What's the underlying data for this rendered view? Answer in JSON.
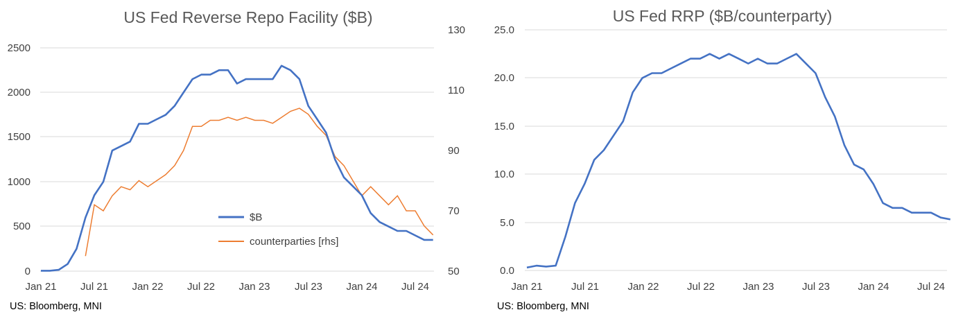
{
  "charts": [
    {
      "title": "US Fed Reverse Repo Facility ($B)",
      "source": "US: Bloomberg, MNI",
      "x_tick_labels": [
        "Jan 21",
        "Jul 21",
        "Jan 22",
        "Jul 22",
        "Jan 23",
        "Jul 23",
        "Jan 24",
        "Jul 24"
      ],
      "y_left_tick_labels": [
        "0",
        "500",
        "1000",
        "1500",
        "2000",
        "2500"
      ],
      "y_right_tick_labels": [
        "50",
        "70",
        "90",
        "110",
        "130"
      ],
      "legend": [
        "$B",
        "counterparties [rhs]"
      ]
    },
    {
      "title": "US Fed RRP ($B/counterparty)",
      "source": "US: Bloomberg, MNI",
      "x_tick_labels": [
        "Jan 21",
        "Jul 21",
        "Jan 22",
        "Jul 22",
        "Jan 23",
        "Jul 23",
        "Jan 24",
        "Jul 24"
      ],
      "y_tick_labels": [
        "0.0",
        "5.0",
        "10.0",
        "15.0",
        "20.0",
        "25.0"
      ]
    }
  ],
  "colors": {
    "usd": "#4472C4",
    "counterparties": "#ED7D31",
    "grid": "#D9D9D9"
  },
  "chart_data": [
    {
      "type": "line",
      "title": "US Fed Reverse Repo Facility ($B)",
      "x_axis": "date",
      "x_ticks": [
        "2021-01",
        "2021-07",
        "2022-01",
        "2022-07",
        "2023-01",
        "2023-07",
        "2024-01",
        "2024-07"
      ],
      "ylim_left": [
        0,
        2500
      ],
      "ylim_right": [
        50,
        130
      ],
      "grid": true,
      "legend_position": "center-bottom",
      "series": [
        {
          "name": "$B",
          "axis": "left",
          "x": [
            "2021-01",
            "2021-02",
            "2021-03",
            "2021-04",
            "2021-05",
            "2021-06",
            "2021-07",
            "2021-08",
            "2021-09",
            "2021-10",
            "2021-11",
            "2021-12",
            "2022-01",
            "2022-02",
            "2022-03",
            "2022-04",
            "2022-05",
            "2022-06",
            "2022-07",
            "2022-08",
            "2022-09",
            "2022-10",
            "2022-11",
            "2022-12",
            "2023-01",
            "2023-02",
            "2023-03",
            "2023-04",
            "2023-05",
            "2023-06",
            "2023-07",
            "2023-08",
            "2023-09",
            "2023-10",
            "2023-11",
            "2023-12",
            "2024-01",
            "2024-02",
            "2024-03",
            "2024-04",
            "2024-05",
            "2024-06",
            "2024-07",
            "2024-08",
            "2024-09"
          ],
          "values": [
            5,
            5,
            15,
            80,
            250,
            600,
            850,
            1000,
            1350,
            1400,
            1450,
            1650,
            1650,
            1700,
            1750,
            1850,
            2000,
            2150,
            2200,
            2200,
            2250,
            2250,
            2100,
            2150,
            2150,
            2150,
            2150,
            2300,
            2250,
            2150,
            1850,
            1700,
            1550,
            1250,
            1050,
            950,
            850,
            650,
            550,
            500,
            450,
            450,
            400,
            350,
            350
          ]
        },
        {
          "name": "counterparties [rhs]",
          "axis": "right",
          "x": [
            "2021-06",
            "2021-07",
            "2021-08",
            "2021-09",
            "2021-10",
            "2021-11",
            "2021-12",
            "2022-01",
            "2022-02",
            "2022-03",
            "2022-04",
            "2022-05",
            "2022-06",
            "2022-07",
            "2022-08",
            "2022-09",
            "2022-10",
            "2022-11",
            "2022-12",
            "2023-01",
            "2023-02",
            "2023-03",
            "2023-04",
            "2023-05",
            "2023-06",
            "2023-07",
            "2023-08",
            "2023-09",
            "2023-10",
            "2023-11",
            "2023-12",
            "2024-01",
            "2024-02",
            "2024-03",
            "2024-04",
            "2024-05",
            "2024-06",
            "2024-07",
            "2024-08",
            "2024-09"
          ],
          "values": [
            55,
            72,
            70,
            75,
            78,
            77,
            80,
            78,
            80,
            82,
            85,
            90,
            98,
            98,
            100,
            100,
            101,
            100,
            101,
            100,
            100,
            99,
            101,
            103,
            104,
            102,
            98,
            95,
            88,
            85,
            80,
            75,
            78,
            75,
            72,
            75,
            70,
            70,
            65,
            62
          ]
        }
      ]
    },
    {
      "type": "line",
      "title": "US Fed RRP ($B/counterparty)",
      "x_axis": "date",
      "x_ticks": [
        "2021-01",
        "2021-07",
        "2022-01",
        "2022-07",
        "2023-01",
        "2023-07",
        "2024-01",
        "2024-07"
      ],
      "ylim": [
        0,
        25
      ],
      "grid": true,
      "series": [
        {
          "x": [
            "2021-01",
            "2021-02",
            "2021-03",
            "2021-04",
            "2021-05",
            "2021-06",
            "2021-07",
            "2021-08",
            "2021-09",
            "2021-10",
            "2021-11",
            "2021-12",
            "2022-01",
            "2022-02",
            "2022-03",
            "2022-04",
            "2022-05",
            "2022-06",
            "2022-07",
            "2022-08",
            "2022-09",
            "2022-10",
            "2022-11",
            "2022-12",
            "2023-01",
            "2023-02",
            "2023-03",
            "2023-04",
            "2023-05",
            "2023-06",
            "2023-07",
            "2023-08",
            "2023-09",
            "2023-10",
            "2023-11",
            "2023-12",
            "2024-01",
            "2024-02",
            "2024-03",
            "2024-04",
            "2024-05",
            "2024-06",
            "2024-07",
            "2024-08",
            "2024-09"
          ],
          "values": [
            0.3,
            0.5,
            0.4,
            0.5,
            3.5,
            7.0,
            9.0,
            11.5,
            12.5,
            14.0,
            15.5,
            18.5,
            20.0,
            20.5,
            20.5,
            21.0,
            21.5,
            22.0,
            22.0,
            22.5,
            22.0,
            22.5,
            22.0,
            21.5,
            22.0,
            21.5,
            21.5,
            22.0,
            22.5,
            21.5,
            20.5,
            18.0,
            16.0,
            13.0,
            11.0,
            10.5,
            9.0,
            7.0,
            6.5,
            6.5,
            6.0,
            6.0,
            6.0,
            5.5,
            5.3
          ]
        }
      ]
    }
  ]
}
